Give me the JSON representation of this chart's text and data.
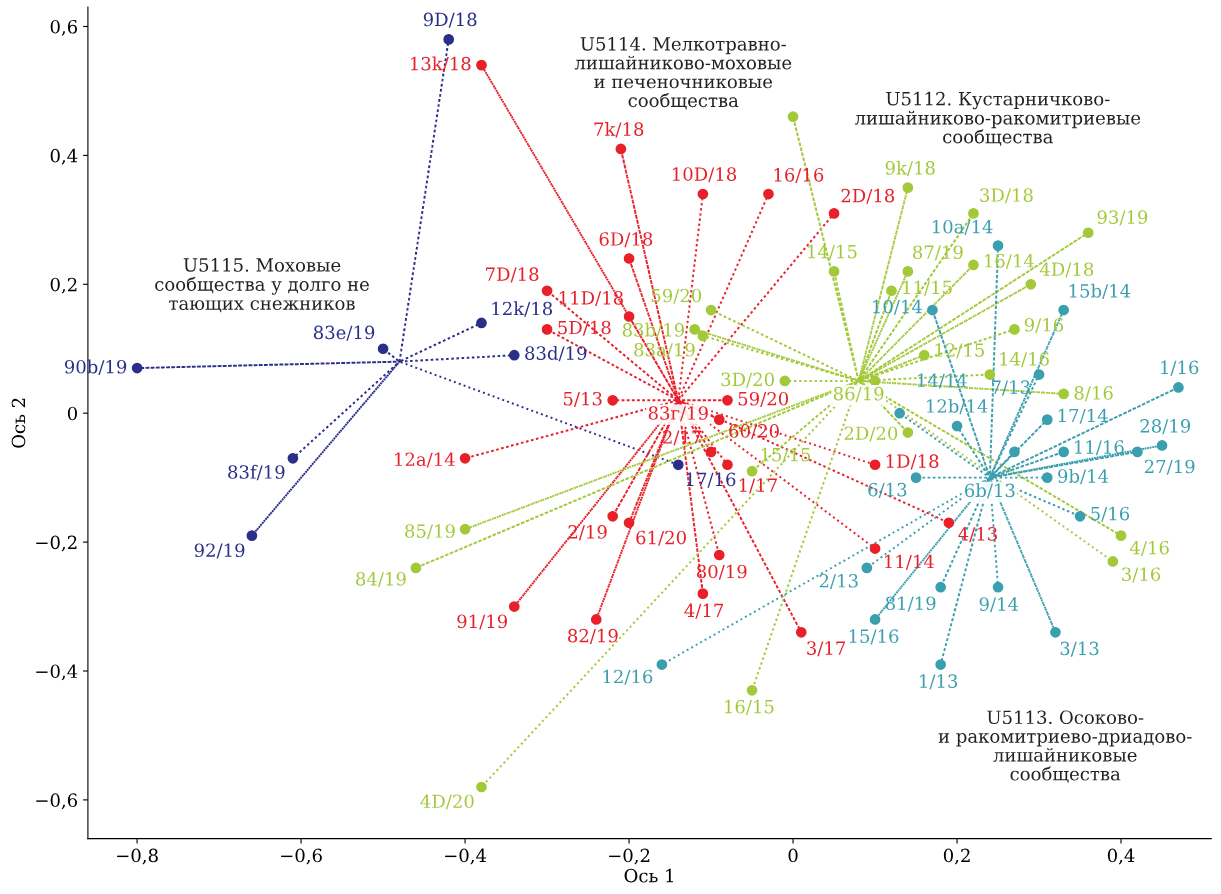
{
  "chart_data": {
    "type": "scatter",
    "xlabel": "Ось 1",
    "ylabel": "Ось 2",
    "xlim": [
      -0.86,
      0.51
    ],
    "ylim": [
      -0.66,
      0.63
    ],
    "xticks": [
      {
        "value": -0.8,
        "label": "−0,8"
      },
      {
        "value": -0.6,
        "label": "−0,6"
      },
      {
        "value": -0.4,
        "label": "−0,4"
      },
      {
        "value": -0.2,
        "label": "−0,2"
      },
      0,
      {
        "value": 0.2,
        "label": "0,2"
      },
      {
        "value": 0.4,
        "label": "0,4"
      }
    ],
    "yticks": [
      {
        "value": -0.6,
        "label": "−0,6"
      },
      {
        "value": -0.4,
        "label": "−0,4"
      },
      {
        "value": -0.2,
        "label": "−0,2"
      },
      0,
      {
        "value": 0.2,
        "label": "0,2"
      },
      {
        "value": 0.4,
        "label": "0,4"
      },
      {
        "value": 0.6,
        "label": "0,6"
      }
    ],
    "grid": false,
    "legend": false,
    "marker": "circle",
    "annotations": [
      "U5114. Мелкотравно-\nлишайниково-моховые\nи печеночниковые\nсообщества",
      "U5112. Кустарничково-\nлишайниково-ракомитриевые\nсообщества",
      "U5115. Моховые\nсообщества у долго не\nтающих снежников",
      "U5113. Осоково-\nи ракомитриево-дриадово-\nлишайниковые\nсообщества",
      {
        "text": "83г/19",
        "x": -0.14,
        "y": 0.02
      },
      {
        "text": "86/19",
        "x": 0.08,
        "y": 0.05
      },
      {
        "text": "6b/13",
        "x": 0.24,
        "y": -0.1
      },
      {
        "text": "9D/18",
        "x": -0.42,
        "y": 0.58
      },
      {
        "text": "12k/18",
        "x": -0.38,
        "y": 0.14
      },
      {
        "text": "83e/19",
        "x": -0.5,
        "y": 0.1
      },
      {
        "text": "83d/19",
        "x": -0.34,
        "y": 0.09
      },
      {
        "text": "90b/19",
        "x": -0.8,
        "y": 0.07
      },
      {
        "text": "83f/19",
        "x": -0.61,
        "y": -0.07
      },
      {
        "text": "92/19",
        "x": -0.66,
        "y": -0.19
      },
      {
        "text": "17/16",
        "x": -0.14,
        "y": -0.08
      },
      {
        "text": "13k/18",
        "x": -0.38,
        "y": 0.54
      },
      {
        "text": "7k/18",
        "x": -0.21,
        "y": 0.41
      },
      {
        "text": "10D/18",
        "x": -0.11,
        "y": 0.34
      },
      {
        "text": "16/16",
        "x": -0.03,
        "y": 0.34
      },
      {
        "text": "2D/18",
        "x": 0.05,
        "y": 0.31
      },
      {
        "text": "6D/18",
        "x": -0.2,
        "y": 0.24
      },
      {
        "text": "7D/18",
        "x": -0.3,
        "y": 0.19
      },
      {
        "text": "11D/18",
        "x": -0.2,
        "y": 0.15
      },
      {
        "text": "5D/18",
        "x": -0.3,
        "y": 0.13
      },
      {
        "text": "5/13",
        "x": -0.22,
        "y": 0.02
      },
      {
        "text": "59/20",
        "x": -0.08,
        "y": 0.02
      },
      {
        "text": "60/20",
        "x": -0.09,
        "y": -0.01
      },
      {
        "text": "2/17",
        "x": -0.1,
        "y": -0.06
      },
      {
        "text": "1/17",
        "x": -0.08,
        "y": -0.08
      },
      {
        "text": "12a/14",
        "x": -0.4,
        "y": -0.07
      },
      {
        "text": "2/19",
        "x": -0.22,
        "y": -0.16
      },
      {
        "text": "61/20",
        "x": -0.2,
        "y": -0.17
      },
      {
        "text": "80/19",
        "x": -0.09,
        "y": -0.22
      },
      {
        "text": "4/17",
        "x": -0.11,
        "y": -0.28
      },
      {
        "text": "3/17",
        "x": 0.01,
        "y": -0.34
      },
      {
        "text": "91/19",
        "x": -0.34,
        "y": -0.3
      },
      {
        "text": "82/19",
        "x": -0.24,
        "y": -0.32
      },
      {
        "text": "11/14",
        "x": 0.1,
        "y": -0.21
      },
      {
        "text": "4/13",
        "x": 0.19,
        "y": -0.17
      },
      {
        "text": "1D/18",
        "x": 0.1,
        "y": -0.08
      },
      {
        "text": "9k/18",
        "x": 0.14,
        "y": 0.35
      },
      {
        "text": "3D/18",
        "x": 0.22,
        "y": 0.31
      },
      {
        "text": "93/19",
        "x": 0.36,
        "y": 0.28
      },
      {
        "text": "14/15",
        "x": 0.05,
        "y": 0.22
      },
      {
        "text": "87/19",
        "x": 0.14,
        "y": 0.22
      },
      {
        "text": "16/14",
        "x": 0.22,
        "y": 0.23
      },
      {
        "text": "4D/18",
        "x": 0.29,
        "y": 0.2
      },
      {
        "text": "11/15",
        "x": 0.12,
        "y": 0.19
      },
      {
        "text": "59/20",
        "x": -0.1,
        "y": 0.16
      },
      {
        "text": "83b/19",
        "x": -0.12,
        "y": 0.13
      },
      {
        "text": "83a/19",
        "x": -0.11,
        "y": 0.12
      },
      {
        "text": "12/15",
        "x": 0.16,
        "y": 0.09
      },
      {
        "text": "9/16",
        "x": 0.27,
        "y": 0.13
      },
      {
        "text": "14/16",
        "x": 0.24,
        "y": 0.06
      },
      {
        "text": "8/16",
        "x": 0.33,
        "y": 0.03
      },
      {
        "text": "3D/20",
        "x": -0.01,
        "y": 0.05
      },
      {
        "text": "15/15",
        "x": -0.05,
        "y": -0.09
      },
      {
        "text": "2D/20",
        "x": 0.14,
        "y": -0.03
      },
      {
        "text": "85/19",
        "x": -0.4,
        "y": -0.18
      },
      {
        "text": "84/19",
        "x": -0.46,
        "y": -0.24
      },
      {
        "text": "4D/20",
        "x": -0.38,
        "y": -0.58
      },
      {
        "text": "16/15",
        "x": -0.05,
        "y": -0.43
      },
      {
        "text": "4/16",
        "x": 0.4,
        "y": -0.19
      },
      {
        "text": "3/16",
        "x": 0.39,
        "y": -0.23
      },
      {
        "text": "10a/14",
        "x": 0.25,
        "y": 0.26
      },
      {
        "text": "10/14",
        "x": 0.17,
        "y": 0.16
      },
      {
        "text": "15b/14",
        "x": 0.33,
        "y": 0.16
      },
      {
        "text": "7/13",
        "x": 0.3,
        "y": 0.06
      },
      {
        "text": "1/16",
        "x": 0.47,
        "y": 0.04
      },
      {
        "text": "12b/14",
        "x": 0.2,
        "y": -0.02
      },
      {
        "text": "14/14",
        "x": 0.13,
        "y": 0.0
      },
      {
        "text": "17/14",
        "x": 0.31,
        "y": -0.01
      },
      {
        "text": "11/16",
        "x": 0.33,
        "y": -0.06
      },
      {
        "text": "9b/14",
        "x": 0.31,
        "y": -0.1
      },
      {
        "text": "27/19",
        "x": 0.42,
        "y": -0.06
      },
      {
        "text": "28/19",
        "x": 0.45,
        "y": -0.05
      },
      {
        "text": "6/13",
        "x": 0.15,
        "y": -0.1
      },
      {
        "text": "2/13",
        "x": 0.09,
        "y": -0.24
      },
      {
        "text": "81/19",
        "x": 0.18,
        "y": -0.27
      },
      {
        "text": "9/14",
        "x": 0.25,
        "y": -0.27
      },
      {
        "text": "15/16",
        "x": 0.1,
        "y": -0.32
      },
      {
        "text": "3/13",
        "x": 0.32,
        "y": -0.34
      },
      {
        "text": "1/13",
        "x": 0.18,
        "y": -0.39
      },
      {
        "text": "5/16",
        "x": 0.35,
        "y": -0.16
      },
      {
        "text": "12/16",
        "x": -0.16,
        "y": -0.39
      }
    ],
    "series": [
      {
        "type": "line",
        "marker": "none",
        "line_style": "dotted",
        "color": "#2b2f8a",
        "x": [
          -0.48,
          -0.42,
          -0.48,
          -0.38,
          -0.48,
          -0.5,
          -0.48,
          -0.34,
          -0.48,
          -0.8,
          -0.48,
          -0.61,
          -0.48,
          -0.66,
          -0.48,
          -0.14
        ],
        "values": [
          0.08,
          0.58,
          0.08,
          0.14,
          0.08,
          0.1,
          0.08,
          0.09,
          0.08,
          0.07,
          0.08,
          -0.07,
          0.08,
          -0.19,
          0.08,
          -0.08
        ]
      },
      {
        "type": "line",
        "marker": "none",
        "line_style": "dotted",
        "color": "#e8202a",
        "x": [
          -0.14,
          -0.38,
          -0.14,
          -0.21,
          -0.14,
          -0.11,
          -0.14,
          -0.03,
          -0.14,
          0.05,
          -0.14,
          -0.2,
          -0.14,
          -0.3,
          -0.14,
          -0.2,
          -0.14,
          -0.3,
          -0.14,
          -0.22,
          -0.14,
          -0.08,
          -0.14,
          -0.09,
          -0.14,
          -0.1,
          -0.14,
          -0.08,
          -0.14,
          -0.4,
          -0.14,
          -0.22,
          -0.14,
          -0.2,
          -0.14,
          -0.09,
          -0.14,
          -0.11,
          -0.14,
          0.01,
          -0.14,
          -0.34,
          -0.14,
          -0.24,
          -0.14,
          0.1,
          -0.14,
          0.19,
          -0.14,
          0.1
        ],
        "values": [
          0.02,
          0.54,
          0.02,
          0.41,
          0.02,
          0.34,
          0.02,
          0.34,
          0.02,
          0.31,
          0.02,
          0.24,
          0.02,
          0.19,
          0.02,
          0.15,
          0.02,
          0.13,
          0.02,
          0.02,
          0.02,
          0.02,
          0.02,
          -0.01,
          0.02,
          -0.06,
          0.02,
          -0.08,
          0.02,
          -0.07,
          0.02,
          -0.16,
          0.02,
          -0.17,
          0.02,
          -0.22,
          0.02,
          -0.28,
          0.02,
          -0.34,
          0.02,
          -0.3,
          0.02,
          -0.32,
          0.02,
          -0.21,
          0.02,
          -0.17,
          0.02,
          -0.08
        ]
      },
      {
        "type": "line",
        "marker": "none",
        "line_style": "dotted",
        "color": "#a3c93a",
        "x": [
          0.08,
          0.0,
          0.08,
          0.14,
          0.08,
          0.22,
          0.08,
          0.36,
          0.08,
          0.05,
          0.08,
          0.14,
          0.08,
          0.22,
          0.08,
          0.29,
          0.08,
          0.12,
          0.08,
          -0.1,
          0.08,
          -0.12,
          0.08,
          -0.11,
          0.08,
          0.16,
          0.08,
          0.1,
          0.08,
          0.27,
          0.08,
          0.24,
          0.08,
          0.33,
          0.08,
          -0.01,
          0.08,
          -0.05,
          0.08,
          0.14,
          0.08,
          -0.4,
          0.08,
          -0.46,
          0.08,
          -0.38,
          0.08,
          -0.05,
          0.08,
          0.4,
          0.08,
          0.39
        ],
        "values": [
          0.05,
          0.46,
          0.05,
          0.35,
          0.05,
          0.31,
          0.05,
          0.28,
          0.05,
          0.22,
          0.05,
          0.22,
          0.05,
          0.23,
          0.05,
          0.2,
          0.05,
          0.19,
          0.05,
          0.16,
          0.05,
          0.13,
          0.05,
          0.12,
          0.05,
          0.09,
          0.05,
          0.05,
          0.05,
          0.13,
          0.05,
          0.06,
          0.05,
          0.03,
          0.05,
          0.05,
          0.05,
          -0.09,
          0.05,
          -0.03,
          0.05,
          -0.18,
          0.05,
          -0.24,
          0.05,
          -0.58,
          0.05,
          -0.43,
          0.05,
          -0.19,
          0.05,
          -0.23
        ]
      },
      {
        "type": "line",
        "marker": "none",
        "line_style": "dotted",
        "color": "#3a9fae",
        "x": [
          0.24,
          0.25,
          0.24,
          0.17,
          0.24,
          0.33,
          0.24,
          0.3,
          0.24,
          0.47,
          0.24,
          0.2,
          0.24,
          0.13,
          0.24,
          0.31,
          0.24,
          0.27,
          0.24,
          0.33,
          0.24,
          0.31,
          0.24,
          0.42,
          0.24,
          0.45,
          0.24,
          0.15,
          0.24,
          0.09,
          0.24,
          0.18,
          0.24,
          0.25,
          0.24,
          0.1,
          0.24,
          0.32,
          0.24,
          0.18,
          0.24,
          0.35,
          0.24,
          -0.16
        ],
        "values": [
          -0.1,
          0.26,
          -0.1,
          0.16,
          -0.1,
          0.16,
          -0.1,
          0.06,
          -0.1,
          0.04,
          -0.1,
          -0.02,
          -0.1,
          0.0,
          -0.1,
          -0.01,
          -0.1,
          -0.06,
          -0.1,
          -0.06,
          -0.1,
          -0.1,
          -0.1,
          -0.06,
          -0.1,
          -0.05,
          -0.1,
          -0.1,
          -0.1,
          -0.24,
          -0.1,
          -0.27,
          -0.1,
          -0.27,
          -0.1,
          -0.32,
          -0.1,
          -0.34,
          -0.1,
          -0.39,
          -0.1,
          -0.16,
          -0.1,
          -0.39
        ]
      },
      {
        "color": "#2b2f8a",
        "x": [
          -0.42,
          -0.38,
          -0.5,
          -0.34,
          -0.8,
          -0.61,
          -0.66,
          -0.14
        ],
        "values": [
          0.58,
          0.14,
          0.1,
          0.09,
          0.07,
          -0.07,
          -0.19,
          -0.08
        ]
      },
      {
        "color": "#e8202a",
        "x": [
          -0.38,
          -0.21,
          -0.11,
          -0.03,
          0.05,
          -0.2,
          -0.3,
          -0.2,
          -0.3,
          -0.22,
          -0.08,
          -0.09,
          -0.1,
          -0.08,
          -0.4,
          -0.22,
          -0.2,
          -0.09,
          -0.11,
          0.01,
          -0.34,
          -0.24,
          0.1,
          0.19,
          0.1
        ],
        "values": [
          0.54,
          0.41,
          0.34,
          0.34,
          0.31,
          0.24,
          0.19,
          0.15,
          0.13,
          0.02,
          0.02,
          -0.01,
          -0.06,
          -0.08,
          -0.07,
          -0.16,
          -0.17,
          -0.22,
          -0.28,
          -0.34,
          -0.3,
          -0.32,
          -0.21,
          -0.17,
          -0.08
        ]
      },
      {
        "color": "#a3c93a",
        "x": [
          0.0,
          0.14,
          0.22,
          0.36,
          0.05,
          0.14,
          0.22,
          0.29,
          0.12,
          -0.1,
          -0.12,
          -0.11,
          0.16,
          0.1,
          0.27,
          0.24,
          0.33,
          -0.01,
          -0.05,
          0.14,
          -0.4,
          -0.46,
          -0.38,
          -0.05,
          0.4,
          0.39
        ],
        "values": [
          0.46,
          0.35,
          0.31,
          0.28,
          0.22,
          0.22,
          0.23,
          0.2,
          0.19,
          0.16,
          0.13,
          0.12,
          0.09,
          0.05,
          0.13,
          0.06,
          0.03,
          0.05,
          -0.09,
          -0.03,
          -0.18,
          -0.24,
          -0.58,
          -0.43,
          -0.19,
          -0.23
        ]
      },
      {
        "color": "#3a9fae",
        "x": [
          0.25,
          0.17,
          0.33,
          0.3,
          0.47,
          0.2,
          0.13,
          0.31,
          0.27,
          0.33,
          0.31,
          0.42,
          0.45,
          0.15,
          0.09,
          0.18,
          0.25,
          0.1,
          0.32,
          0.18,
          0.35,
          -0.16
        ],
        "values": [
          0.26,
          0.16,
          0.16,
          0.06,
          0.04,
          -0.02,
          0.0,
          -0.01,
          -0.06,
          -0.06,
          -0.1,
          -0.06,
          -0.05,
          -0.1,
          -0.24,
          -0.27,
          -0.27,
          -0.32,
          -0.34,
          -0.39,
          -0.16,
          -0.39
        ]
      }
    ]
  }
}
